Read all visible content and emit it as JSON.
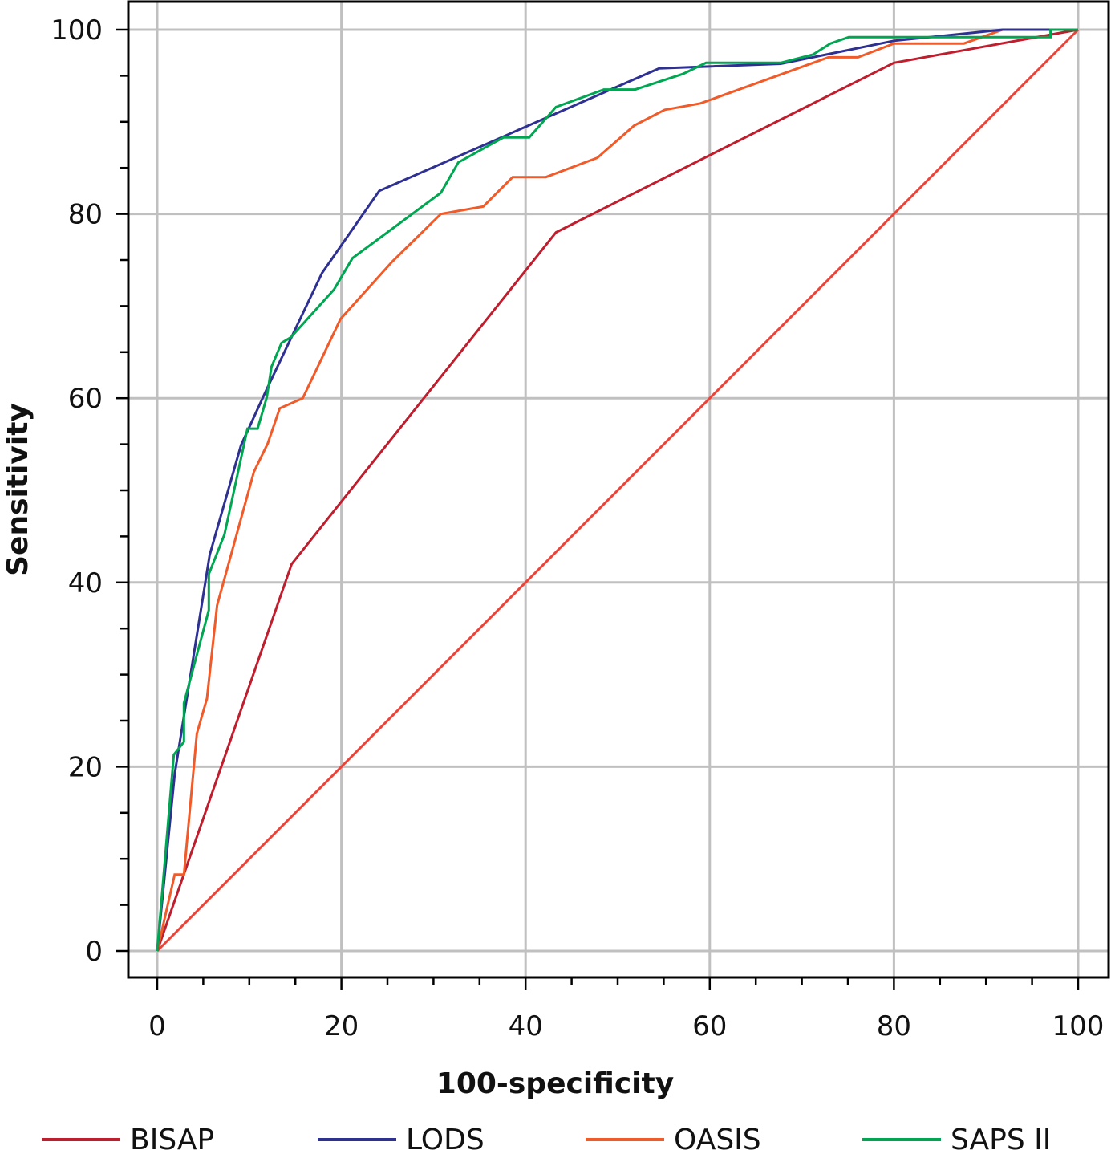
{
  "chart_data": {
    "type": "line",
    "title": "",
    "xlabel": "100-specificity",
    "ylabel": "Sensitivity",
    "xlim": [
      0,
      100
    ],
    "ylim": [
      0,
      100
    ],
    "x_ticks": [
      0,
      20,
      40,
      60,
      80,
      100
    ],
    "y_ticks": [
      0,
      20,
      40,
      60,
      80,
      100
    ],
    "x_tick_labels": [
      "0",
      "20",
      "40",
      "60",
      "80",
      "100"
    ],
    "y_tick_labels": [
      "0",
      "20",
      "40",
      "60",
      "80",
      "100"
    ],
    "x_minor_step": 5,
    "y_minor_step": 5,
    "grid": true,
    "legend_position": "bottom",
    "series": [
      {
        "name": "BISAP",
        "color": "#be1e2d",
        "x": [
          0,
          14.6,
          43.3,
          80.0,
          100
        ],
        "y": [
          0,
          42.0,
          78.0,
          96.4,
          100
        ]
      },
      {
        "name": "LODS",
        "color": "#2e3192",
        "x": [
          0,
          1.9,
          5.7,
          9.1,
          11.9,
          17.9,
          24.1,
          54.5,
          67.7,
          80.0,
          91.8,
          100
        ],
        "y": [
          0,
          19.2,
          43.0,
          54.9,
          61.0,
          73.6,
          82.5,
          95.8,
          96.3,
          98.8,
          100,
          100
        ]
      },
      {
        "name": "OASIS",
        "color": "#f15a29",
        "x": [
          0,
          1.9,
          2.9,
          4.3,
          5.4,
          6.5,
          10.5,
          12.0,
          13.3,
          15.8,
          19.9,
          25.5,
          30.8,
          35.4,
          38.6,
          42.2,
          47.8,
          51.8,
          55.1,
          59.0,
          72.9,
          76.1,
          80.0,
          87.6,
          91.8,
          100
        ],
        "y": [
          0,
          8.3,
          8.3,
          23.6,
          27.4,
          37.5,
          52.0,
          55.1,
          58.9,
          60.0,
          68.6,
          74.8,
          80.0,
          80.8,
          84.0,
          84.0,
          86.1,
          89.6,
          91.3,
          92.0,
          97.0,
          97.0,
          98.5,
          98.5,
          100,
          100
        ]
      },
      {
        "name": "SAPS II",
        "color": "#00a651",
        "x": [
          0,
          1.8,
          2.9,
          2.9,
          5.6,
          5.6,
          7.3,
          9.8,
          10.9,
          11.9,
          12.4,
          13.5,
          14.5,
          19.2,
          21.2,
          30.8,
          32.7,
          37.6,
          40.4,
          43.3,
          48.5,
          51.9,
          57.1,
          59.6,
          67.7,
          71.2,
          73.1,
          75.1,
          97.0,
          97.0,
          100
        ],
        "y": [
          0,
          21.3,
          22.7,
          26.9,
          37.0,
          40.9,
          45.2,
          56.7,
          56.7,
          60.1,
          63.4,
          66.0,
          66.6,
          71.8,
          75.2,
          82.3,
          85.6,
          88.3,
          88.3,
          91.6,
          93.5,
          93.5,
          95.2,
          96.4,
          96.4,
          97.3,
          98.5,
          99.2,
          99.2,
          100,
          100
        ]
      },
      {
        "name": "reference",
        "color": "#ef4136",
        "x": [
          0,
          100
        ],
        "y": [
          0,
          100
        ]
      }
    ],
    "legend": [
      "BISAP",
      "LODS",
      "OASIS",
      "SAPS II"
    ]
  }
}
